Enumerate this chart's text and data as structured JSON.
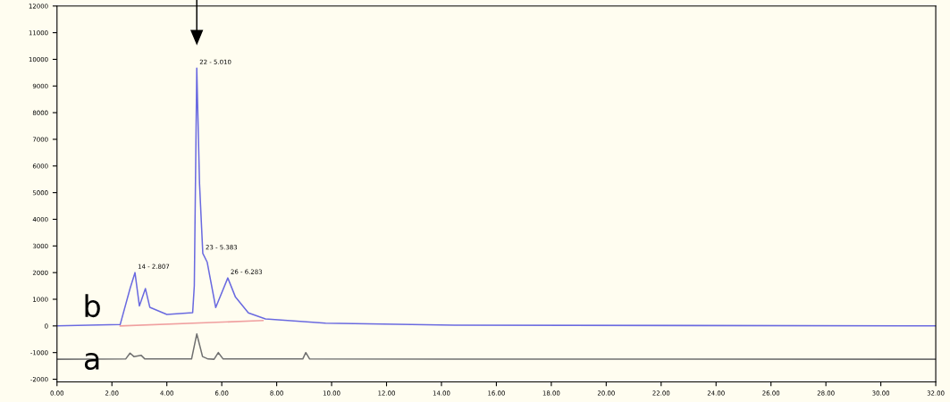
{
  "chart_data": {
    "type": "line",
    "xlim": [
      0,
      32
    ],
    "ylim": [
      -2100,
      12000
    ],
    "xticks": [
      {
        "value": 0,
        "label": "0.00"
      },
      {
        "value": 2,
        "label": "2.00"
      },
      {
        "value": 4,
        "label": "4.00"
      },
      {
        "value": 6,
        "label": "6.00"
      },
      {
        "value": 8,
        "label": "8.00"
      },
      {
        "value": 10,
        "label": "10.00"
      },
      {
        "value": 12,
        "label": "12.00"
      },
      {
        "value": 14,
        "label": "14.00"
      },
      {
        "value": 16,
        "label": "16.00"
      },
      {
        "value": 18,
        "label": "18.00"
      },
      {
        "value": 20,
        "label": "20.00"
      },
      {
        "value": 22,
        "label": "22.00"
      },
      {
        "value": 24,
        "label": "24.00"
      },
      {
        "value": 26,
        "label": "26.00"
      },
      {
        "value": 28,
        "label": "28.00"
      },
      {
        "value": 30,
        "label": "30.00"
      },
      {
        "value": 32,
        "label": "32.00"
      }
    ],
    "yticks": [
      -2000,
      -1000,
      0,
      1000,
      2000,
      3000,
      4000,
      5000,
      6000,
      7000,
      8000,
      9000,
      10000,
      11000,
      12000
    ],
    "grid": false,
    "legend": false,
    "marker": "none",
    "line_style": "solid",
    "series": [
      {
        "color": "#6a6ae0",
        "x": [
          0,
          2.3,
          2.66,
          2.84,
          3.0,
          3.22,
          3.38,
          4.0,
          4.94,
          5.0,
          5.09,
          5.19,
          5.31,
          5.47,
          5.78,
          6.22,
          6.5,
          6.97,
          7.59,
          9.78,
          14.47,
          32
        ],
        "values": [
          0,
          50,
          1400,
          2000,
          750,
          1400,
          700,
          430,
          500,
          1500,
          9670,
          5340,
          2720,
          2390,
          690,
          1800,
          1080,
          490,
          260,
          100,
          30,
          0
        ]
      },
      {
        "color": "#f0a0a0",
        "x": [
          2.3,
          7.5
        ],
        "values": [
          0,
          200
        ]
      },
      {
        "color": "#707070",
        "x": [
          0,
          2.5,
          2.66,
          2.8,
          3.06,
          3.2,
          4.9,
          5.09,
          5.3,
          5.5,
          5.72,
          5.875,
          6.05,
          8.95,
          9.06,
          9.2,
          32
        ],
        "values": [
          -1250,
          -1240,
          -1020,
          -1150,
          -1100,
          -1240,
          -1240,
          -300,
          -1150,
          -1240,
          -1250,
          -1000,
          -1240,
          -1240,
          -1000,
          -1240,
          -1250
        ]
      }
    ],
    "annotations": [
      {
        "text": "22 - 5.010",
        "x": 5.09,
        "y": 9670
      },
      {
        "text": "14 - 2.807",
        "x": 2.84,
        "y": 2000
      },
      {
        "text": "23 - 5.383",
        "x": 5.31,
        "y": 2720
      },
      {
        "text": "26 - 6.283",
        "x": 6.22,
        "y": 1800
      },
      "b",
      "a"
    ]
  }
}
